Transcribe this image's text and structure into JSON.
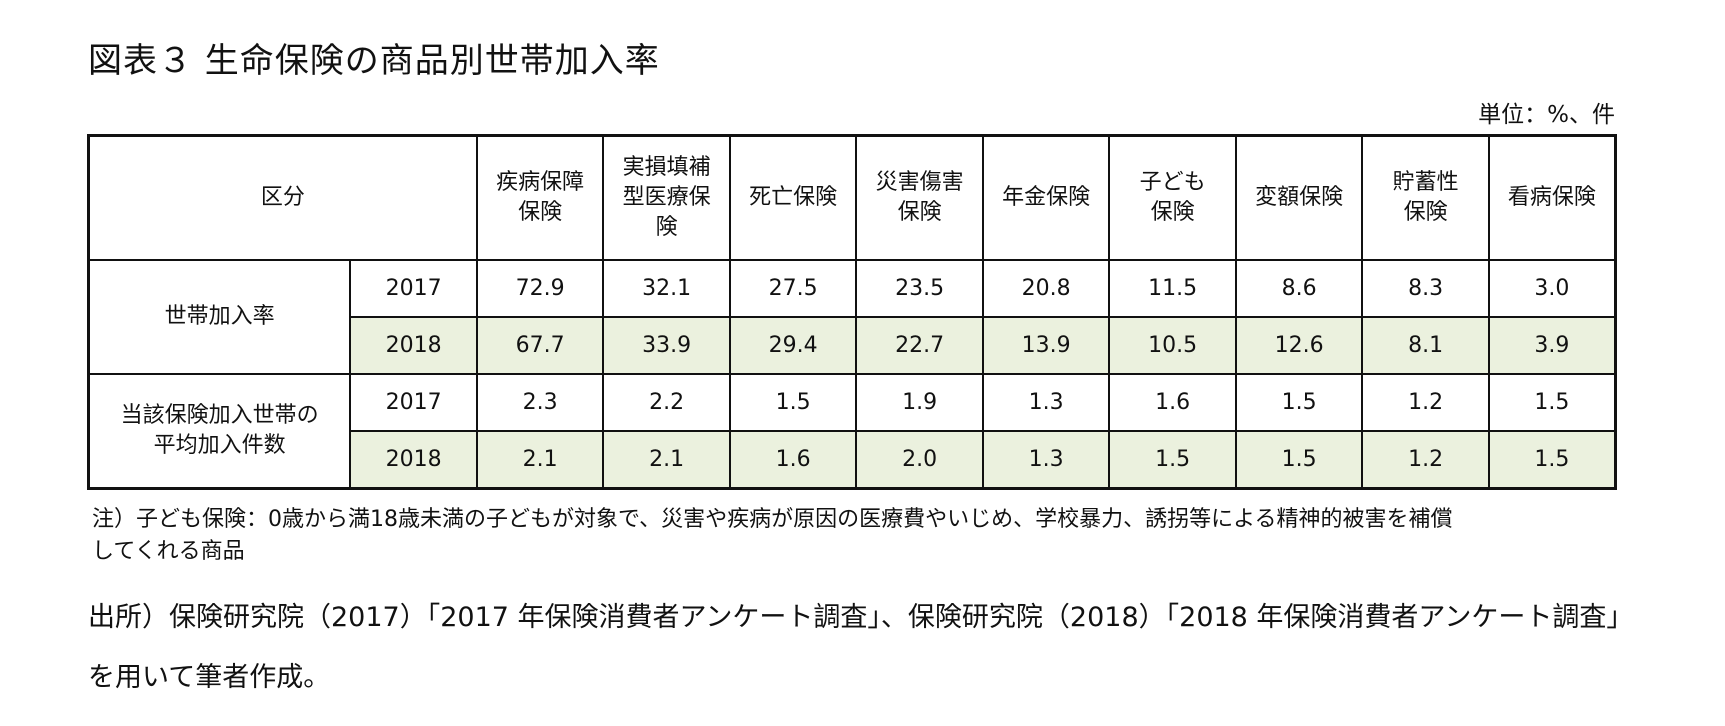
{
  "title": "図表３ 生命保険の商品別世帯加入率",
  "unit": "単位：%、件",
  "table": {
    "corner_label": "区分",
    "columns": [
      [
        "疾病保障",
        "保険"
      ],
      [
        "実損填補",
        "型医療保",
        "険"
      ],
      [
        "死亡保険"
      ],
      [
        "災害傷害",
        "保険"
      ],
      [
        "年金保険"
      ],
      [
        "子ども",
        "保険"
      ],
      [
        "変額保険"
      ],
      [
        "貯蓄性",
        "保険"
      ],
      [
        "看病保険"
      ]
    ],
    "groups": [
      {
        "label": [
          "世帯加入率"
        ],
        "rows": [
          {
            "year": "2017",
            "values": [
              "72.9",
              "32.1",
              "27.5",
              "23.5",
              "20.8",
              "11.5",
              "8.6",
              "8.3",
              "3.0"
            ]
          },
          {
            "year": "2018",
            "values": [
              "67.7",
              "33.9",
              "29.4",
              "22.7",
              "13.9",
              "10.5",
              "12.6",
              "8.1",
              "3.9"
            ]
          }
        ]
      },
      {
        "label": [
          "当該保険加入世帯の",
          "平均加入件数"
        ],
        "rows": [
          {
            "year": "2017",
            "values": [
              "2.3",
              "2.2",
              "1.5",
              "1.9",
              "1.3",
              "1.6",
              "1.5",
              "1.2",
              "1.5"
            ]
          },
          {
            "year": "2018",
            "values": [
              "2.1",
              "2.1",
              "1.6",
              "2.0",
              "1.3",
              "1.5",
              "1.5",
              "1.2",
              "1.5"
            ]
          }
        ]
      }
    ]
  },
  "note": {
    "line1": "注）子ども保険：0歳から満18歳未満の子どもが対象で、災害や疾病が原因の医療費やいじめ、学校暴力、誘拐等による精神的被害を補償",
    "line2": "してくれる商品"
  },
  "source": {
    "line1": "出所）保険研究院（2017）「2017 年保険消費者アンケート調査」、保険研究院（2018）「2018 年保険消費者アンケート調査」",
    "line2": "を用いて筆者作成。"
  }
}
